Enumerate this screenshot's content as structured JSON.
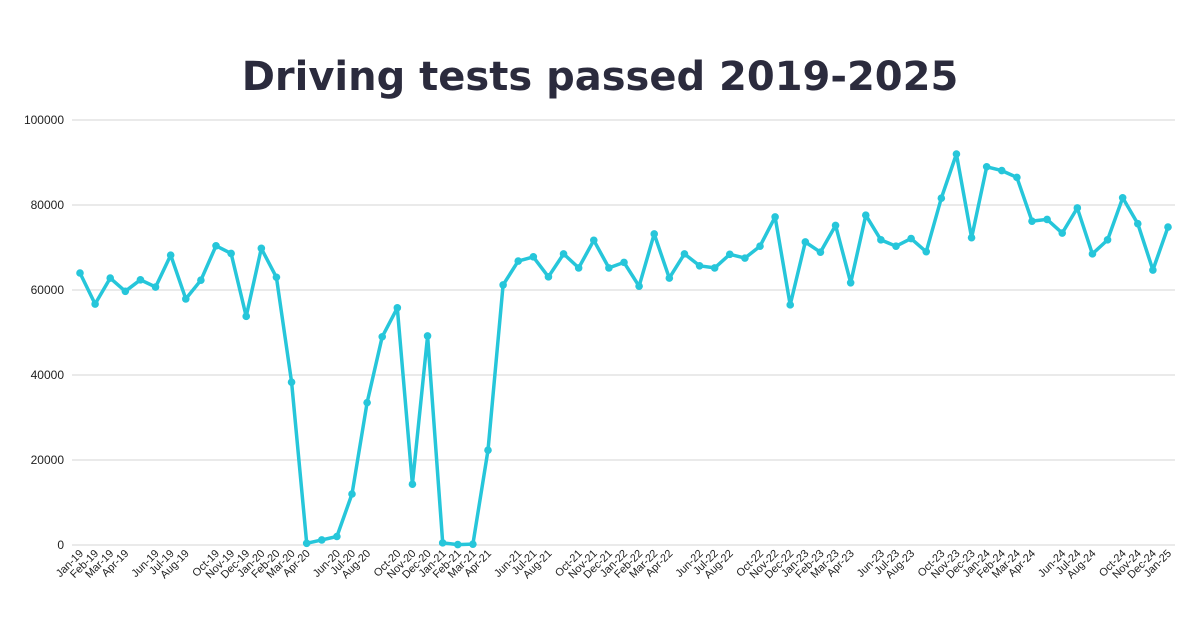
{
  "chart_data": {
    "type": "line",
    "title": "Driving tests passed  2019-2025",
    "xlabel": "",
    "ylabel": "",
    "ylim": [
      0,
      100000
    ],
    "yticks": [
      0,
      20000,
      40000,
      60000,
      80000,
      100000
    ],
    "grid": true,
    "legend": "none",
    "line_color": "#26c6da",
    "x": [
      "Jan-19",
      "Feb-19",
      "Mar-19",
      "Apr-19",
      "May-19",
      "Jun-19",
      "Jul-19",
      "Aug-19",
      "Sep-19",
      "Oct-19",
      "Nov-19",
      "Dec-19",
      "Jan-20",
      "Feb-20",
      "Mar-20",
      "Apr-20",
      "May-20",
      "Jun-20",
      "Jul-20",
      "Aug-20",
      "Sep-20",
      "Oct-20",
      "Nov-20",
      "Dec-20",
      "Jan-21",
      "Feb-21",
      "Mar-21",
      "Apr-21",
      "May-21",
      "Jun-21",
      "Jul-21",
      "Aug-21",
      "Sep-21",
      "Oct-21",
      "Nov-21",
      "Dec-21",
      "Jan-22",
      "Feb-22",
      "Mar-22",
      "Apr-22",
      "May-22",
      "Jun-22",
      "Jul-22",
      "Aug-22",
      "Sep-22",
      "Oct-22",
      "Nov-22",
      "Dec-22",
      "Jan-23",
      "Feb-23",
      "Mar-23",
      "Apr-23",
      "May-23",
      "Jun-23",
      "Jul-23",
      "Aug-23",
      "Sep-23",
      "Oct-23",
      "Nov-23",
      "Dec-23",
      "Jan-24",
      "Feb-24",
      "Mar-24",
      "Apr-24",
      "May-24",
      "Jun-24",
      "Jul-24",
      "Aug-24",
      "Sep-24",
      "Oct-24",
      "Nov-24",
      "Dec-24",
      "Jan-25"
    ],
    "tick_labels": [
      "Jan-19",
      "Feb-19",
      "Mar-19",
      "Apr-19",
      "",
      "Jun-19",
      "Jul-19",
      "Aug-19",
      "",
      "Oct-19",
      "Nov-19",
      "Dec-19",
      "Jan-20",
      "Feb-20",
      "Mar-20",
      "Apr-20",
      "",
      "Jun-20",
      "Jul-20",
      "Aug-20",
      "",
      "Oct-20",
      "Nov-20",
      "Dec-20",
      "Jan-21",
      "Feb-21",
      "Mar-21",
      "Apr-21",
      "",
      "Jun-21",
      "Jul-21",
      "Aug-21",
      "",
      "Oct-21",
      "Nov-21",
      "Dec-21",
      "Jan-22",
      "Feb-22",
      "Mar-22",
      "Apr-22",
      "",
      "Jun-22",
      "Jul-22",
      "Aug-22",
      "",
      "Oct-22",
      "Nov-22",
      "Dec-22",
      "Jan-23",
      "Feb-23",
      "Mar-23",
      "Apr-23",
      "",
      "Jun-23",
      "Jul-23",
      "Aug-23",
      "",
      "Oct-23",
      "Nov-23",
      "Dec-23",
      "Jan-24",
      "Feb-24",
      "Mar-24",
      "Apr-24",
      "",
      "Jun-24",
      "Jul-24",
      "Aug-24",
      "",
      "Oct-24",
      "Nov-24",
      "Dec-24",
      "Jan-25"
    ],
    "series": [
      {
        "values": [
          64000,
          56700,
          62800,
          59700,
          62400,
          60700,
          68200,
          57900,
          62300,
          70400,
          68600,
          53800,
          69800,
          63000,
          38300,
          400,
          1200,
          2000,
          12000,
          33500,
          49000,
          55800,
          14300,
          49200,
          500,
          100,
          200,
          22300,
          61200,
          66800,
          67800,
          63100,
          68500,
          65200,
          71700,
          65200,
          66500,
          60900,
          73200,
          62800,
          68500,
          65700,
          65200,
          68400,
          67500,
          70300,
          77200,
          56500,
          71300,
          68900,
          75200,
          61700,
          77600,
          71800,
          70300,
          72100,
          69000,
          81600,
          92000,
          72300,
          89000,
          88100,
          86500,
          76200,
          76600,
          73400,
          79300,
          68500,
          71800,
          81700,
          75600,
          64700,
          74800
        ]
      }
    ]
  }
}
